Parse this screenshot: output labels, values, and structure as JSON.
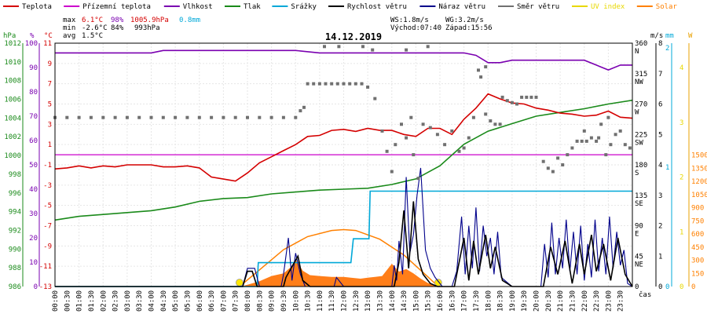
{
  "chart_data": {
    "type": "line",
    "title": "14.12.2019",
    "legend": [
      {
        "label": "Teplota",
        "color": "#d40000"
      },
      {
        "label": "Přízemní teplota",
        "color": "#cc00cc"
      },
      {
        "label": "Vlhkost",
        "color": "#7a00b0"
      },
      {
        "label": "Tlak",
        "color": "#1a8a1a"
      },
      {
        "label": "Srážky",
        "color": "#00a8d8"
      },
      {
        "label": "Rychlost větru",
        "color": "#000000"
      },
      {
        "label": "Náraz větru",
        "color": "#00008b"
      },
      {
        "label": "Směr větru",
        "color": "#707070"
      },
      {
        "label": "UV index",
        "color": "#e8d800"
      },
      {
        "label": "Solar",
        "color": "#ff8000"
      }
    ],
    "stats": {
      "max_label": "max",
      "min_label": "min",
      "avg_label": "avg",
      "max_temp": "6.1°C",
      "max_hum": "98%",
      "max_press": "1005.9hPa",
      "rain": "0.8mm",
      "min_temp": "-2.6°C",
      "min_hum": "84%",
      "min_press": "993hPa",
      "avg_temp": "1.5°C",
      "ws": "WS:1.8m/s",
      "wg": "WG:3.2m/s",
      "sunrise": "Východ:07:40",
      "sunset": "Západ:15:56"
    },
    "axis_units": {
      "hpa": "hPa",
      "pct": "%",
      "celsius": "°C",
      "ms": "m/s",
      "mm": "mm",
      "w": "W",
      "time": "čas"
    },
    "axes": {
      "pressure": [
        986,
        988,
        990,
        992,
        994,
        996,
        998,
        1000,
        1002,
        1004,
        1006,
        1008,
        1010,
        1012
      ],
      "humidity": [
        0,
        10,
        20,
        30,
        40,
        50,
        60,
        70,
        80,
        90,
        100
      ],
      "temperature": [
        -13,
        -11,
        -9,
        -7,
        -5,
        -3,
        -1,
        1,
        3,
        5,
        7,
        9,
        11
      ],
      "direction": [
        "0",
        "45\nNE",
        "90\nE",
        "135\nSE",
        "180\nS",
        "225\nSW",
        "270\nW",
        "315\nNW",
        "360\nN"
      ],
      "wind": [
        0,
        1,
        2,
        3,
        4,
        5,
        6,
        7,
        8
      ],
      "rain": [
        0,
        1,
        2
      ],
      "uv": [
        0,
        1,
        2,
        3,
        4
      ],
      "solar": [
        0,
        150,
        300,
        450,
        600,
        750,
        900,
        1050,
        1200,
        1350,
        1500
      ]
    },
    "x_times": [
      "00:00",
      "00:30",
      "01:00",
      "01:30",
      "02:00",
      "02:30",
      "03:00",
      "03:30",
      "04:00",
      "04:30",
      "05:00",
      "05:30",
      "06:00",
      "06:30",
      "07:00",
      "07:30",
      "08:00",
      "08:30",
      "09:00",
      "09:30",
      "10:00",
      "10:30",
      "11:00",
      "11:30",
      "12:00",
      "12:30",
      "13:00",
      "13:30",
      "14:00",
      "14:30",
      "15:00",
      "15:30",
      "16:00",
      "16:30",
      "17:00",
      "17:30",
      "18:00",
      "18:30",
      "19:00",
      "19:30",
      "20:00",
      "20:30",
      "21:00",
      "21:30",
      "22:00",
      "22:30",
      "23:00",
      "23:30"
    ],
    "x_range_hours": [
      0,
      24
    ],
    "series": [
      {
        "name": "Teplota",
        "color": "#d40000",
        "axis": "temperature",
        "x": [
          0,
          0.5,
          1,
          1.5,
          2,
          2.5,
          3,
          3.5,
          4,
          4.5,
          5,
          5.5,
          6,
          6.5,
          7,
          7.5,
          8,
          8.5,
          9,
          9.5,
          10,
          10.5,
          11,
          11.5,
          12,
          12.5,
          13,
          13.5,
          14,
          14.5,
          15,
          15.5,
          16,
          16.5,
          17,
          17.5,
          18,
          18.5,
          19,
          19.5,
          20,
          20.5,
          21,
          21.5,
          22,
          22.5,
          23,
          23.5,
          24
        ],
        "y": [
          -1.4,
          -1.3,
          -1.1,
          -1.3,
          -1.1,
          -1.2,
          -1.0,
          -1.0,
          -1.0,
          -1.2,
          -1.2,
          -1.1,
          -1.3,
          -2.2,
          -2.4,
          -2.6,
          -1.8,
          -0.8,
          -0.2,
          0.4,
          1.0,
          1.8,
          1.9,
          2.4,
          2.5,
          2.3,
          2.6,
          2.4,
          2.4,
          2.0,
          1.8,
          2.6,
          2.6,
          2.0,
          3.5,
          4.6,
          6.0,
          5.5,
          5.1,
          5.0,
          4.6,
          4.4,
          4.1,
          4.0,
          3.8,
          3.9,
          4.3,
          3.7,
          3.6
        ]
      },
      {
        "name": "Přízemní teplota",
        "color": "#cc00cc",
        "axis": "temperature",
        "x": [
          0,
          24
        ],
        "y": [
          0,
          0
        ]
      },
      {
        "name": "Vlhkost",
        "color": "#7a00b0",
        "axis": "humidity",
        "x": [
          0,
          1,
          2,
          3,
          4,
          4.5,
          5,
          6,
          7,
          8,
          9,
          10,
          11,
          12,
          13,
          14,
          15,
          16,
          17,
          17.5,
          18,
          18.5,
          19,
          20,
          21,
          22,
          22.5,
          23,
          23.5,
          24
        ],
        "y": [
          96,
          96,
          96,
          96,
          96,
          97,
          97,
          97,
          97,
          97,
          97,
          97,
          96,
          96,
          96,
          96,
          96,
          96,
          96,
          95,
          92,
          92,
          93,
          93,
          93,
          93,
          91,
          89,
          91,
          91
        ]
      },
      {
        "name": "Tlak",
        "color": "#1a8a1a",
        "axis": "pressure",
        "x": [
          0,
          1,
          2,
          3,
          4,
          5,
          6,
          7,
          8,
          9,
          10,
          11,
          12,
          13,
          14,
          15,
          16,
          17,
          18,
          19,
          20,
          21,
          22,
          23,
          24
        ],
        "y": [
          993.1,
          993.5,
          993.7,
          993.9,
          994.1,
          994.5,
          995.1,
          995.4,
          995.5,
          995.9,
          996.1,
          996.3,
          996.4,
          996.5,
          996.9,
          997.5,
          998.9,
          1001.2,
          1002.6,
          1003.4,
          1004.2,
          1004.6,
          1005.0,
          1005.5,
          1005.9
        ]
      },
      {
        "name": "Srážky",
        "color": "#00a8d8",
        "axis": "rain",
        "x": [
          0,
          8.4,
          8.45,
          12.3,
          12.4,
          13.05,
          13.1,
          14.2,
          14.25,
          24
        ],
        "y": [
          0,
          0,
          0.2,
          0.2,
          0.4,
          0.4,
          0.8,
          0.8,
          0.8,
          0.8
        ]
      },
      {
        "name": "Rychlost větru",
        "color": "#000000",
        "axis": "wind",
        "x": [
          0,
          7.8,
          8,
          8.2,
          8.4,
          9.5,
          9.6,
          10.1,
          10.3,
          10.6,
          11.8,
          12,
          13,
          14.1,
          14.3,
          14.5,
          14.7,
          14.9,
          15.1,
          15.3,
          15.6,
          15.9,
          16.2,
          16.6,
          16.8,
          17,
          17.2,
          17.4,
          17.6,
          17.9,
          18.1,
          18.3,
          18.6,
          19,
          20.3,
          20.6,
          20.9,
          21.2,
          21.5,
          21.8,
          22,
          22.3,
          22.5,
          22.8,
          23.1,
          23.4,
          23.7,
          24
        ],
        "y": [
          0,
          0,
          0.5,
          0.5,
          0,
          0,
          0.3,
          1.0,
          0.2,
          0,
          0,
          0,
          0,
          0,
          0.8,
          2.5,
          0.6,
          2.8,
          0.9,
          0.4,
          0.1,
          0,
          0,
          0,
          0.8,
          1.6,
          0.2,
          1.5,
          0.4,
          1.7,
          0.6,
          1.3,
          0.2,
          0,
          0,
          1.3,
          0.4,
          1.5,
          0.1,
          1.4,
          0.4,
          1.7,
          0.5,
          1.4,
          0.2,
          1.6,
          0.4,
          0
        ]
      },
      {
        "name": "Náraz větru",
        "color": "#00008b",
        "axis": "wind",
        "x": [
          0,
          7.8,
          8,
          8.3,
          8.5,
          9.4,
          9.5,
          9.7,
          9.85,
          10.0,
          10.2,
          10.4,
          11.6,
          11.7,
          12,
          13,
          14.0,
          14.1,
          14.2,
          14.3,
          14.45,
          14.6,
          14.75,
          14.9,
          15.05,
          15.2,
          15.4,
          15.6,
          15.8,
          16.1,
          16.5,
          16.7,
          16.9,
          17.05,
          17.2,
          17.35,
          17.5,
          17.65,
          17.8,
          17.95,
          18.1,
          18.25,
          18.4,
          18.55,
          18.7,
          19,
          20.2,
          20.35,
          20.5,
          20.65,
          20.8,
          20.95,
          21.1,
          21.25,
          21.4,
          21.55,
          21.7,
          21.85,
          22,
          22.15,
          22.3,
          22.45,
          22.6,
          22.75,
          22.9,
          23.05,
          23.2,
          23.35,
          23.5,
          23.65,
          23.8,
          24
        ],
        "y": [
          0,
          0,
          0.6,
          0.6,
          0,
          0,
          0.4,
          1.6,
          0.2,
          1.1,
          0.4,
          0,
          0,
          0.3,
          0,
          0,
          0,
          0.7,
          0.2,
          1.5,
          0.4,
          3.6,
          1.1,
          1.7,
          3.0,
          3.9,
          1.2,
          0.6,
          0.3,
          0,
          0,
          0.5,
          2.3,
          0.4,
          2.0,
          0.6,
          2.6,
          0.5,
          2.0,
          1.0,
          1.6,
          0.4,
          1.8,
          0.3,
          0.2,
          0,
          0,
          1.4,
          0.3,
          2.1,
          0.4,
          1.6,
          0.6,
          2.2,
          0.5,
          1.8,
          0.4,
          2.0,
          0.2,
          1.4,
          0.3,
          2.2,
          0.5,
          1.6,
          0.4,
          2.3,
          0.6,
          1.8,
          0.7,
          1.2,
          0.1,
          0
        ]
      },
      {
        "name": "Směr větru",
        "color": "#707070",
        "axis": "direction",
        "style": "points",
        "points": [
          [
            0,
            250
          ],
          [
            0.5,
            250
          ],
          [
            1,
            250
          ],
          [
            1.5,
            250
          ],
          [
            2,
            250
          ],
          [
            2.5,
            250
          ],
          [
            3,
            250
          ],
          [
            3.5,
            250
          ],
          [
            4,
            250
          ],
          [
            4.5,
            250
          ],
          [
            5,
            250
          ],
          [
            5.5,
            250
          ],
          [
            6,
            250
          ],
          [
            6.5,
            250
          ],
          [
            7,
            250
          ],
          [
            7.5,
            250
          ],
          [
            8,
            250
          ],
          [
            8.5,
            250
          ],
          [
            9,
            250
          ],
          [
            9.5,
            250
          ],
          [
            10,
            250
          ],
          [
            10.2,
            260
          ],
          [
            10.35,
            265
          ],
          [
            10.5,
            300
          ],
          [
            10.75,
            300
          ],
          [
            11,
            300
          ],
          [
            11.25,
            300
          ],
          [
            11.5,
            300
          ],
          [
            11.75,
            300
          ],
          [
            12,
            300
          ],
          [
            12.25,
            300
          ],
          [
            12.5,
            300
          ],
          [
            12.75,
            300
          ],
          [
            13,
            295
          ],
          [
            13.3,
            278
          ],
          [
            13.6,
            230
          ],
          [
            13.8,
            200
          ],
          [
            14.0,
            170
          ],
          [
            14.15,
            210
          ],
          [
            14.4,
            240
          ],
          [
            14.6,
            220
          ],
          [
            14.8,
            250
          ],
          [
            14.9,
            195
          ],
          [
            15.1,
            160
          ],
          [
            15.3,
            240
          ],
          [
            15.6,
            235
          ],
          [
            15.9,
            225
          ],
          [
            16.2,
            210
          ],
          [
            16.5,
            230
          ],
          [
            16.8,
            200
          ],
          [
            17.0,
            205
          ],
          [
            17.2,
            220
          ],
          [
            17.4,
            250
          ],
          [
            17.6,
            320
          ],
          [
            17.7,
            310
          ],
          [
            17.9,
            255
          ],
          [
            18.1,
            245
          ],
          [
            18.3,
            240
          ],
          [
            18.5,
            240
          ],
          [
            18.6,
            280
          ],
          [
            18.8,
            275
          ],
          [
            19.0,
            272
          ],
          [
            19.2,
            270
          ],
          [
            19.4,
            280
          ],
          [
            19.6,
            280
          ],
          [
            19.8,
            280
          ],
          [
            20.0,
            280
          ],
          [
            20.3,
            185
          ],
          [
            20.5,
            175
          ],
          [
            20.7,
            170
          ],
          [
            20.9,
            190
          ],
          [
            21.1,
            180
          ],
          [
            21.3,
            195
          ],
          [
            21.5,
            205
          ],
          [
            21.7,
            215
          ],
          [
            21.9,
            215
          ],
          [
            22.1,
            215
          ],
          [
            22.3,
            220
          ],
          [
            22.5,
            215
          ],
          [
            22.7,
            240
          ],
          [
            22.9,
            195
          ],
          [
            23.1,
            210
          ],
          [
            23.3,
            225
          ],
          [
            23.5,
            230
          ],
          [
            23.7,
            210
          ],
          [
            23.9,
            205
          ],
          [
            11.2,
            355
          ],
          [
            11.8,
            355
          ],
          [
            12.8,
            355
          ],
          [
            15.5,
            355
          ],
          [
            14.6,
            350
          ],
          [
            13.2,
            350
          ],
          [
            17.9,
            325
          ],
          [
            22.0,
            230
          ],
          [
            22.6,
            220
          ],
          [
            23.0,
            250
          ]
        ]
      },
      {
        "name": "Solar",
        "color": "#ff8000",
        "axis": "solar",
        "style": "area",
        "x": [
          7.7,
          8.0,
          8.5,
          9.0,
          9.5,
          9.8,
          10.0,
          10.3,
          10.6,
          11.0,
          11.5,
          12.0,
          12.3,
          12.7,
          13.0,
          13.3,
          13.6,
          14.0,
          14.3,
          14.6,
          14.9,
          15.2,
          15.5,
          15.8,
          16.0
        ],
        "y": [
          0,
          20,
          60,
          120,
          150,
          220,
          310,
          180,
          130,
          120,
          110,
          110,
          100,
          90,
          100,
          110,
          120,
          260,
          170,
          200,
          150,
          90,
          40,
          15,
          0
        ]
      },
      {
        "name": "Solar_clear",
        "color": "#ff8000",
        "axis": "solar",
        "style": "curve",
        "x": [
          7.67,
          8.5,
          9.5,
          10.5,
          11.5,
          12.0,
          12.5,
          13.5,
          14.5,
          15.5,
          15.93
        ],
        "y": [
          0,
          190,
          420,
          570,
          640,
          650,
          640,
          540,
          360,
          110,
          0
        ]
      }
    ],
    "sun_markers": {
      "sunrise_h": 7.67,
      "sunset_h": 15.93
    }
  }
}
